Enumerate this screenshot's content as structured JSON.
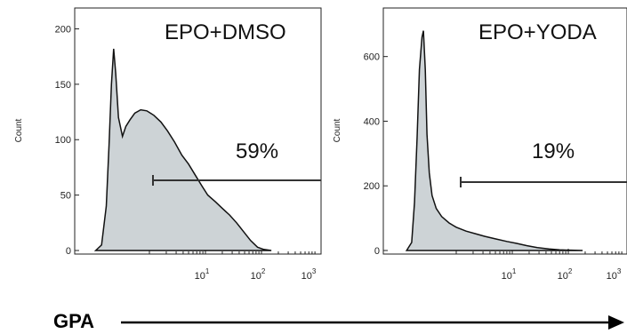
{
  "chart_data": [
    {
      "type": "area",
      "title": "EPO+DMSO",
      "ylabel": "Count",
      "x_scale": "log",
      "ylim": [
        0,
        210
      ],
      "yticks": [
        "0",
        "50",
        "100",
        "150",
        "200"
      ],
      "xticks": [
        "10^1",
        "10^2",
        "10^3"
      ],
      "gate_label": "59%",
      "fill_color": "#cdd3d6",
      "curve": [
        [
          0.11,
          0
        ],
        [
          0.14,
          5
        ],
        [
          0.17,
          40
        ],
        [
          0.19,
          95
        ],
        [
          0.21,
          150
        ],
        [
          0.23,
          182
        ],
        [
          0.25,
          160
        ],
        [
          0.28,
          120
        ],
        [
          0.33,
          103
        ],
        [
          0.38,
          112
        ],
        [
          0.45,
          118
        ],
        [
          0.55,
          124
        ],
        [
          0.7,
          127
        ],
        [
          0.9,
          126
        ],
        [
          1.2,
          122
        ],
        [
          1.6,
          116
        ],
        [
          2.1,
          108
        ],
        [
          2.8,
          98
        ],
        [
          3.8,
          86
        ],
        [
          5,
          78
        ],
        [
          6.6,
          68
        ],
        [
          8.7,
          58
        ],
        [
          11,
          50
        ],
        [
          15,
          44
        ],
        [
          20,
          38
        ],
        [
          27,
          32
        ],
        [
          36,
          25
        ],
        [
          48,
          17
        ],
        [
          64,
          9
        ],
        [
          85,
          3
        ],
        [
          110,
          1
        ],
        [
          150,
          0
        ]
      ]
    },
    {
      "type": "area",
      "title": "EPO+YODA",
      "ylabel": "Count",
      "x_scale": "log",
      "ylim": [
        0,
        720
      ],
      "yticks": [
        "0",
        "200",
        "400",
        "600"
      ],
      "xticks": [
        "10^1",
        "10^2",
        "10^3"
      ],
      "gate_label": "19%",
      "fill_color": "#cdd3d6",
      "curve": [
        [
          0.13,
          0
        ],
        [
          0.16,
          25
        ],
        [
          0.18,
          150
        ],
        [
          0.2,
          350
        ],
        [
          0.22,
          560
        ],
        [
          0.245,
          660
        ],
        [
          0.26,
          680
        ],
        [
          0.28,
          560
        ],
        [
          0.3,
          360
        ],
        [
          0.33,
          240
        ],
        [
          0.37,
          170
        ],
        [
          0.44,
          130
        ],
        [
          0.55,
          105
        ],
        [
          0.75,
          85
        ],
        [
          1.0,
          72
        ],
        [
          1.5,
          60
        ],
        [
          2.2,
          52
        ],
        [
          3.2,
          44
        ],
        [
          5,
          36
        ],
        [
          8,
          28
        ],
        [
          12,
          22
        ],
        [
          18,
          15
        ],
        [
          28,
          9
        ],
        [
          45,
          5
        ],
        [
          70,
          2
        ],
        [
          110,
          1
        ],
        [
          180,
          0
        ]
      ]
    }
  ],
  "x_axis_label": "GPA"
}
